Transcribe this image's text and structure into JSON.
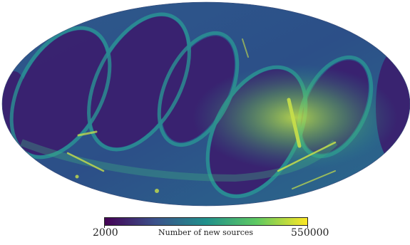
{
  "map": {
    "projection": "mollweide",
    "colormap": "viridis",
    "colormap_stops": [
      "#440154",
      "#3b528b",
      "#21918c",
      "#5ec962",
      "#fde725"
    ],
    "background_color": "#2d4a86",
    "low_density_color": "#3a1f6b",
    "scan_ring_color": "#2a8c8c",
    "hotspot_color": "#c8e04a"
  },
  "colorbar": {
    "min_label": "2000",
    "max_label": "550000",
    "title": "Number of new sources",
    "min": 2000,
    "max": 550000
  }
}
